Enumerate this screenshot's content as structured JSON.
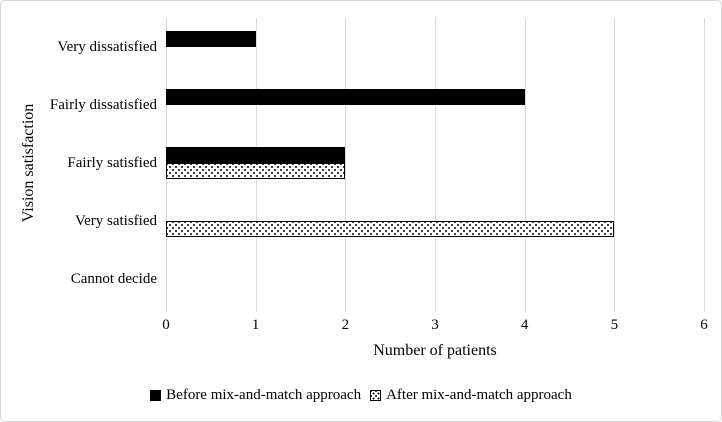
{
  "chart_data": {
    "type": "bar",
    "orientation": "horizontal",
    "categories": [
      "Very dissatisfied",
      "Fairly dissatisfied",
      "Fairly satisfied",
      "Very satisfied",
      "Cannot decide"
    ],
    "series": [
      {
        "name": "Before mix-and-match approach",
        "style": "solid-black",
        "values": [
          1,
          4,
          2,
          0,
          0
        ]
      },
      {
        "name": "After mix-and-match approach",
        "style": "dotted-pattern",
        "values": [
          0,
          0,
          2,
          5,
          0
        ]
      }
    ],
    "xlabel": "Number of patients",
    "ylabel": "Vision satisfaction",
    "xlim": [
      0,
      6
    ],
    "xticks": [
      "0",
      "1",
      "2",
      "3",
      "4",
      "5",
      "6"
    ],
    "grid": "vertical-gridlines-on",
    "legend_position": "bottom-center",
    "colors": {
      "bar_before": "#000000",
      "bar_after_fill": "#ffffff",
      "bar_after_dot": "#000000",
      "gridline": "#d9d9d9",
      "text": "#000000",
      "background": "#ffffff"
    }
  }
}
